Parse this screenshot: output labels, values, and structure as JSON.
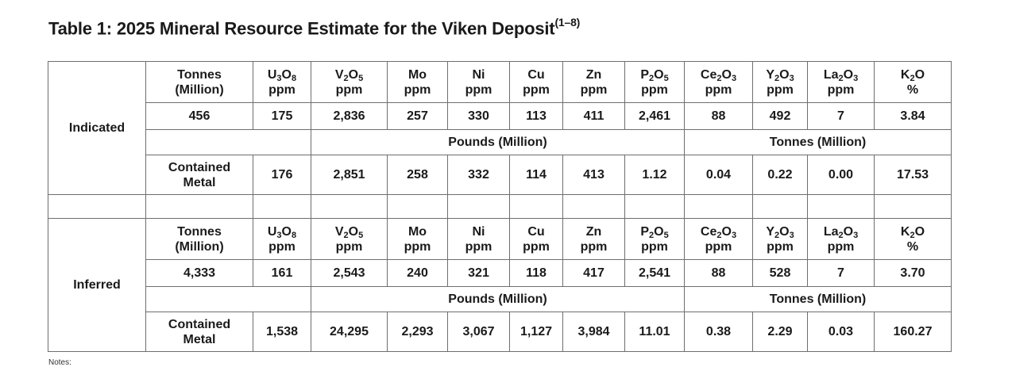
{
  "title": "Table 1: 2025 Mineral Resource Estimate for the Viken Deposit",
  "title_superscript": "(1–8)",
  "header": [
    {
      "line1": "Tonnes",
      "line2": "(Million)"
    },
    {
      "el": "U",
      "s1": "3",
      "m": "O",
      "s2": "8",
      "unit": "ppm"
    },
    {
      "el": "V",
      "s1": "2",
      "m": "O",
      "s2": "5",
      "unit": "ppm"
    },
    {
      "el": "Mo",
      "s1": "",
      "m": "",
      "s2": "",
      "unit": "ppm"
    },
    {
      "el": "Ni",
      "s1": "",
      "m": "",
      "s2": "",
      "unit": "ppm"
    },
    {
      "el": "Cu",
      "s1": "",
      "m": "",
      "s2": "",
      "unit": "ppm"
    },
    {
      "el": "Zn",
      "s1": "",
      "m": "",
      "s2": "",
      "unit": "ppm"
    },
    {
      "el": "P",
      "s1": "2",
      "m": "O",
      "s2": "5",
      "unit": "ppm"
    },
    {
      "el": "Ce",
      "s1": "2",
      "m": "O",
      "s2": "3",
      "unit": "ppm"
    },
    {
      "el": "Y",
      "s1": "2",
      "m": "O",
      "s2": "3",
      "unit": "ppm"
    },
    {
      "el": "La",
      "s1": "2",
      "m": "O",
      "s2": "3",
      "unit": "ppm"
    },
    {
      "el": "K",
      "s1": "2",
      "m": "O",
      "s2": "",
      "unit": "%"
    }
  ],
  "units": {
    "pounds": "Pounds (Million)",
    "tonnes": "Tonnes (Million)"
  },
  "contained_label": {
    "line1": "Contained",
    "line2": "Metal"
  },
  "sections": [
    {
      "category": "Indicated",
      "values": [
        "456",
        "175",
        "2,836",
        "257",
        "330",
        "113",
        "411",
        "2,461",
        "88",
        "492",
        "7",
        "3.84"
      ],
      "contained": [
        "176",
        "2,851",
        "258",
        "332",
        "114",
        "413",
        "1.12",
        "0.04",
        "0.22",
        "0.00",
        "17.53"
      ]
    },
    {
      "category": "Inferred",
      "values": [
        "4,333",
        "161",
        "2,543",
        "240",
        "321",
        "118",
        "417",
        "2,541",
        "88",
        "528",
        "7",
        "3.70"
      ],
      "contained": [
        "1,538",
        "24,295",
        "2,293",
        "3,067",
        "1,127",
        "3,984",
        "11.01",
        "0.38",
        "2.29",
        "0.03",
        "160.27"
      ]
    }
  ],
  "footnote_mark": "Notes:"
}
